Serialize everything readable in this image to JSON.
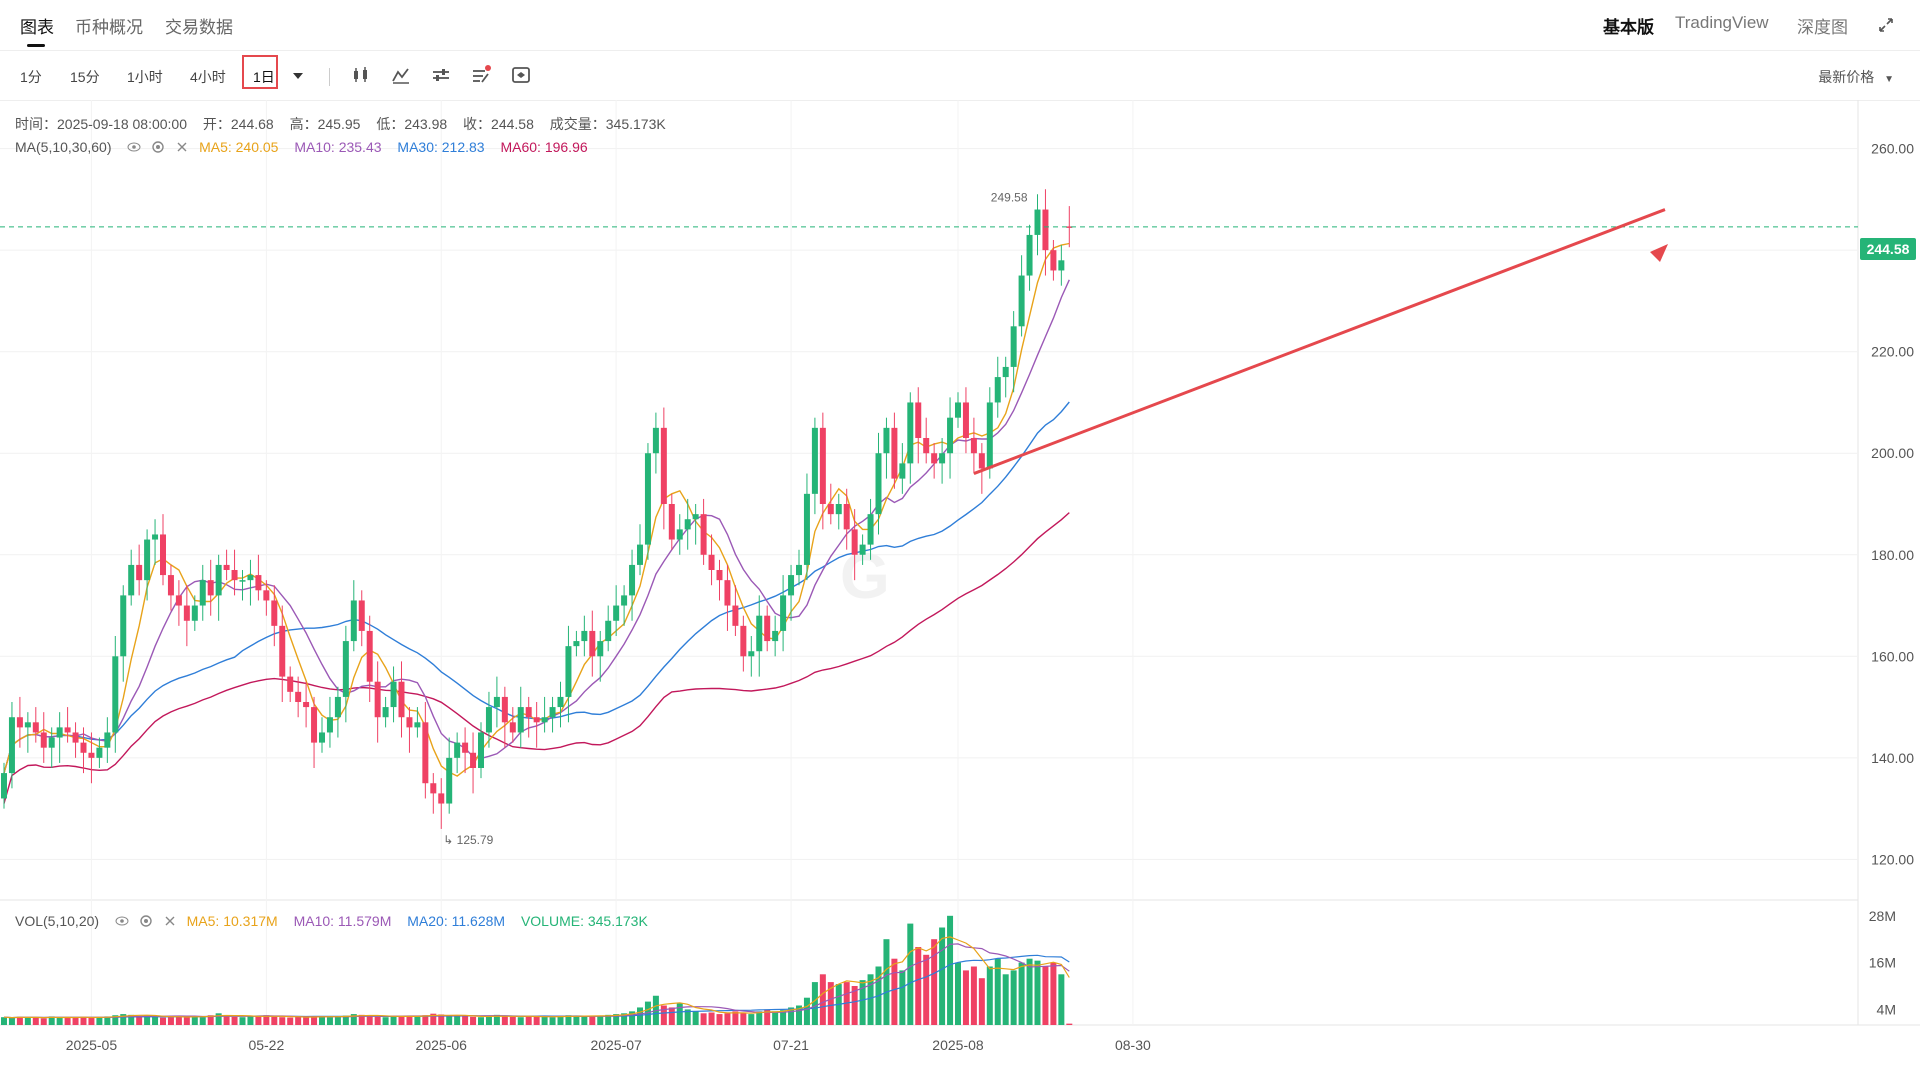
{
  "tabs": {
    "chart": "图表",
    "overview": "币种概况",
    "trade_data": "交易数据"
  },
  "views": {
    "basic": "基本版",
    "tradingview": "TradingView",
    "depth": "深度图"
  },
  "toolbar": {
    "timeframes": [
      "1分",
      "15分",
      "1小时",
      "4小时",
      "1日"
    ],
    "active_timeframe": "1日",
    "price_type": "最新价格"
  },
  "ohlc_info": {
    "time": "时间：2025-09-18 08:00:00",
    "open": "开：244.68",
    "high": "高：245.95",
    "low": "低：243.98",
    "close": "收：244.58",
    "volume": "成交量：345.173K"
  },
  "ma_info": {
    "label": "MA(5,10,30,60)",
    "ma5": "MA5: 240.05",
    "ma10": "MA10: 235.43",
    "ma30": "MA30: 212.83",
    "ma60": "MA60: 196.96"
  },
  "vol_info": {
    "label": "VOL(5,10,20)",
    "ma5": "MA5: 10.317M",
    "ma10": "MA10: 11.579M",
    "ma20": "MA20: 11.628M",
    "volume": "VOLUME: 345.173K"
  },
  "colors": {
    "up": "#25b477",
    "down": "#ef4164",
    "ma5": "#e8a31a",
    "ma10": "#9b59b6",
    "ma30": "#2f7ed8",
    "ma60": "#c2185b",
    "accent": "#e5484d"
  },
  "chart_data": {
    "type": "candlestick",
    "price_axis": {
      "ticks": [
        "260.00",
        "240.00",
        "220.00",
        "200.00",
        "180.00",
        "160.00",
        "140.00",
        "120.00"
      ],
      "range": [
        112,
        268
      ]
    },
    "volume_axis": {
      "ticks": [
        "28M",
        "16M",
        "4M"
      ],
      "range": [
        0,
        30
      ]
    },
    "x_labels": [
      "2025-05",
      "05-22",
      "2025-06",
      "2025-07",
      "07-21",
      "2025-08",
      "08-30"
    ],
    "last_price": "244.58",
    "high_marker": "249.58",
    "low_marker": "125.79",
    "close": [
      137,
      148,
      146,
      147,
      145,
      142,
      144,
      146,
      145,
      143,
      141,
      140,
      142,
      145,
      160,
      172,
      178,
      175,
      183,
      184,
      176,
      172,
      170,
      167,
      170,
      175,
      172,
      178,
      177,
      175,
      175,
      176,
      173,
      171,
      166,
      156,
      153,
      151,
      150,
      143,
      145,
      148,
      152,
      163,
      171,
      165,
      155,
      148,
      150,
      155,
      148,
      146,
      147,
      135,
      133,
      131,
      140,
      143,
      141,
      138,
      145,
      150,
      152,
      147,
      145,
      150,
      148,
      147,
      148,
      150,
      152,
      162,
      163,
      165,
      160,
      163,
      167,
      170,
      172,
      178,
      182,
      200,
      205,
      190,
      183,
      185,
      187,
      188,
      180,
      177,
      175,
      170,
      166,
      160,
      161,
      168,
      163,
      165,
      172,
      176,
      178,
      192,
      205,
      190,
      188,
      190,
      185,
      180,
      182,
      188,
      200,
      205,
      195,
      198,
      210,
      203,
      200,
      198,
      200,
      207,
      210,
      203,
      200,
      197,
      210,
      215,
      217,
      225,
      235,
      243,
      248,
      240,
      236,
      238,
      244.58
    ],
    "open": [
      132,
      137,
      148,
      146,
      147,
      145,
      142,
      144,
      146,
      145,
      143,
      141,
      140,
      142,
      145,
      160,
      172,
      178,
      175,
      183,
      184,
      176,
      172,
      170,
      167,
      170,
      175,
      172,
      178,
      177,
      175,
      175,
      176,
      173,
      171,
      166,
      156,
      153,
      151,
      150,
      143,
      145,
      148,
      152,
      163,
      171,
      165,
      155,
      148,
      150,
      155,
      148,
      146,
      147,
      135,
      133,
      131,
      140,
      143,
      141,
      138,
      145,
      150,
      152,
      147,
      145,
      150,
      148,
      147,
      148,
      150,
      152,
      162,
      163,
      165,
      160,
      163,
      167,
      170,
      172,
      178,
      182,
      200,
      205,
      190,
      183,
      185,
      187,
      188,
      180,
      177,
      175,
      170,
      166,
      160,
      161,
      168,
      163,
      165,
      172,
      176,
      178,
      192,
      205,
      190,
      188,
      190,
      185,
      180,
      182,
      188,
      200,
      205,
      195,
      198,
      210,
      203,
      200,
      198,
      200,
      207,
      210,
      203,
      200,
      197,
      210,
      215,
      217,
      225,
      235,
      243,
      248,
      240,
      236,
      244.68
    ],
    "volume": [
      2.0,
      1.8,
      2.1,
      1.9,
      2.0,
      1.7,
      2.2,
      1.8,
      2.0,
      1.9,
      2.1,
      1.8,
      2.0,
      2.2,
      2.5,
      2.8,
      2.6,
      2.3,
      2.4,
      2.1,
      1.9,
      2.0,
      2.2,
      2.1,
      2.3,
      2.0,
      2.5,
      3.0,
      2.4,
      2.1,
      2.0,
      2.2,
      2.3,
      2.5,
      2.1,
      2.0,
      1.9,
      2.1,
      2.0,
      2.3,
      2.2,
      2.0,
      2.1,
      2.4,
      2.8,
      2.6,
      2.3,
      2.1,
      2.0,
      2.2,
      2.4,
      2.3,
      2.1,
      2.5,
      2.9,
      2.7,
      2.3,
      2.2,
      2.4,
      2.1,
      2.0,
      2.2,
      2.6,
      2.3,
      2.1,
      2.0,
      2.3,
      2.2,
      2.1,
      2.0,
      2.2,
      2.5,
      2.3,
      2.4,
      2.2,
      2.3,
      2.6,
      2.8,
      3.0,
      3.5,
      4.5,
      6.0,
      7.5,
      5.0,
      4.5,
      5.5,
      4.0,
      3.5,
      3.0,
      3.2,
      2.8,
      3.0,
      3.5,
      3.0,
      2.8,
      3.5,
      4.0,
      3.5,
      3.8,
      4.5,
      5.0,
      7.0,
      11.0,
      13.0,
      11.0,
      10.5,
      11.0,
      10.0,
      11.5,
      13.0,
      15.0,
      22.0,
      17.0,
      14.0,
      26.0,
      20.0,
      18.0,
      22.0,
      25.0,
      28.0,
      16.0,
      14.0,
      15.0,
      12.0,
      15.0,
      17.0,
      13.0,
      14.0,
      16.0,
      17.0,
      16.5,
      15.0,
      16.0,
      13.0,
      0.35
    ]
  }
}
